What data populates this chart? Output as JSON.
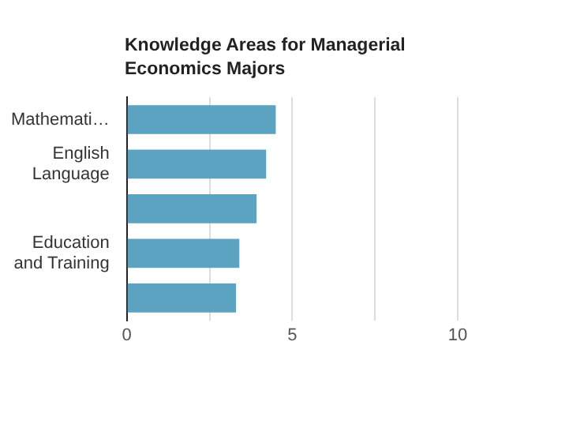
{
  "chart_data": {
    "type": "bar",
    "orientation": "horizontal",
    "title": "Knowledge Areas for Managerial Economics Majors",
    "categories": [
      "Mathemati…",
      "English Language",
      null,
      "Education and Training",
      null
    ],
    "values": [
      4.5,
      4.21,
      3.92,
      3.4,
      3.3
    ],
    "color": "#5ba3c0",
    "xlim": [
      0,
      10
    ],
    "xticks": [
      0,
      {
        "value": 2.5,
        "label": null
      },
      5,
      {
        "value": 7.5,
        "label": null
      },
      10
    ],
    "grid": true,
    "legend": false
  }
}
